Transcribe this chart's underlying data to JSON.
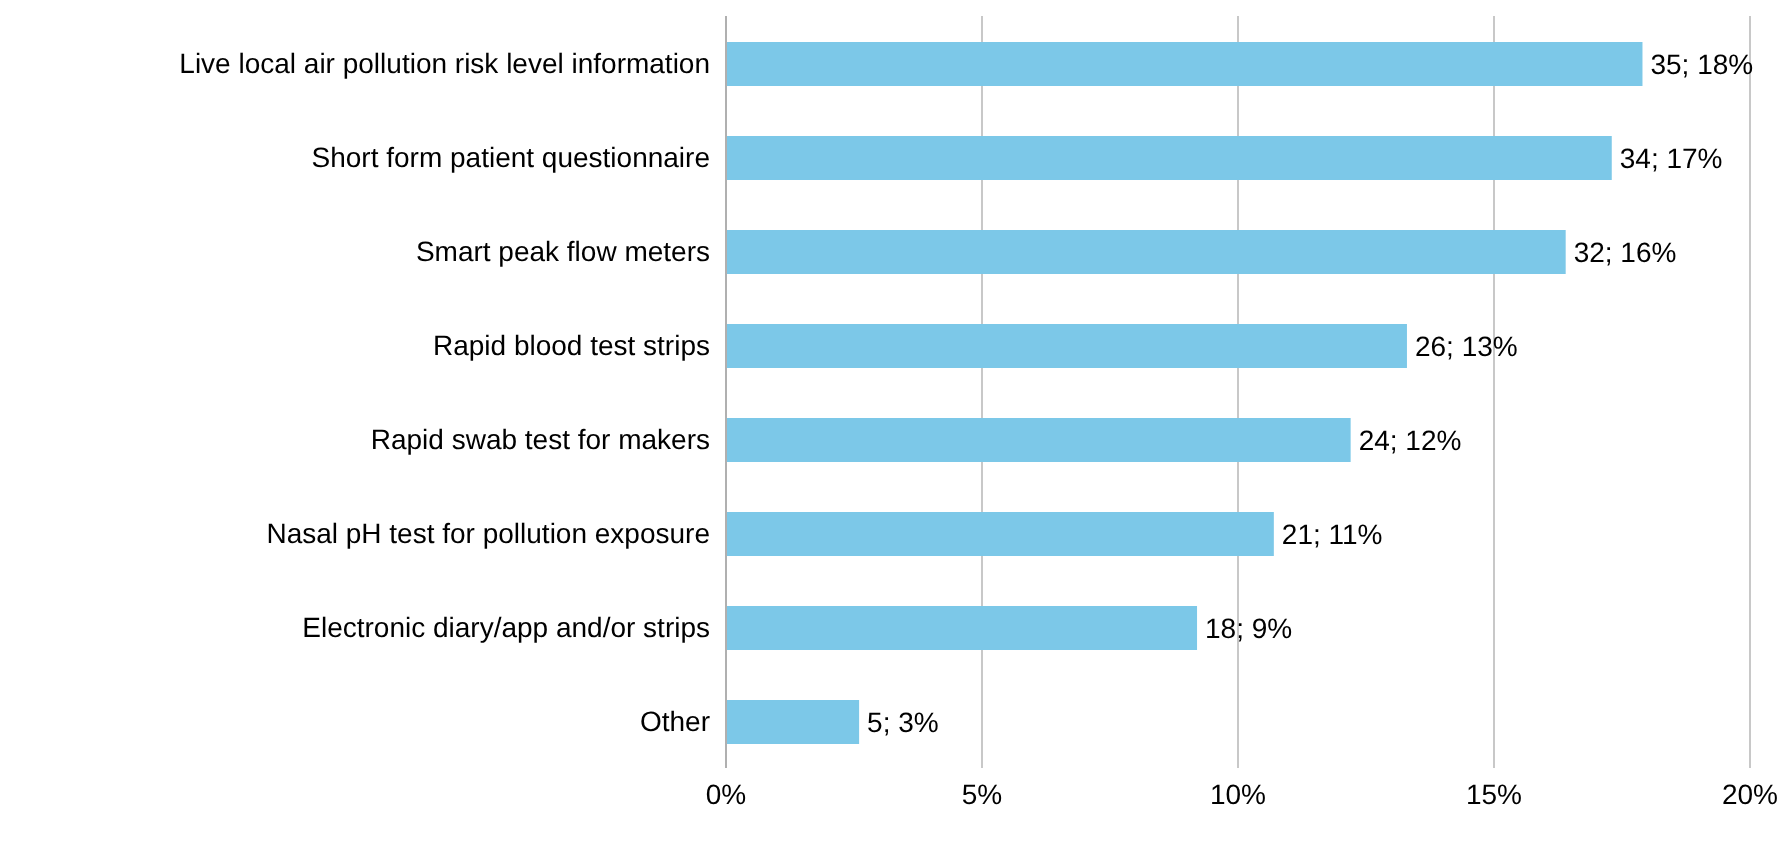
{
  "chart_data": {
    "type": "bar",
    "orientation": "horizontal",
    "categories": [
      "Live local air pollution risk level information",
      "Short form patient questionnaire",
      "Smart peak flow meters",
      "Rapid blood test strips",
      "Rapid swab test for makers",
      "Nasal pH test for pollution exposure",
      "Electronic diary/app and/or strips",
      "Other"
    ],
    "values": [
      17.9,
      17.3,
      16.4,
      13.3,
      12.2,
      10.7,
      9.2,
      2.6
    ],
    "value_labels": [
      "35; 18%",
      "34; 17%",
      "32; 16%",
      "26; 13%",
      "24; 12%",
      "21; 11%",
      "18; 9%",
      "5; 3%"
    ],
    "color": "#7cc8e8",
    "xlim": [
      0,
      20
    ],
    "xticks": [
      {
        "value": 0,
        "label": "0%"
      },
      {
        "value": 5,
        "label": "5%"
      },
      {
        "value": 10,
        "label": "10%"
      },
      {
        "value": 15,
        "label": "15%"
      },
      {
        "value": 20,
        "label": "20%"
      }
    ],
    "grid": "x"
  }
}
